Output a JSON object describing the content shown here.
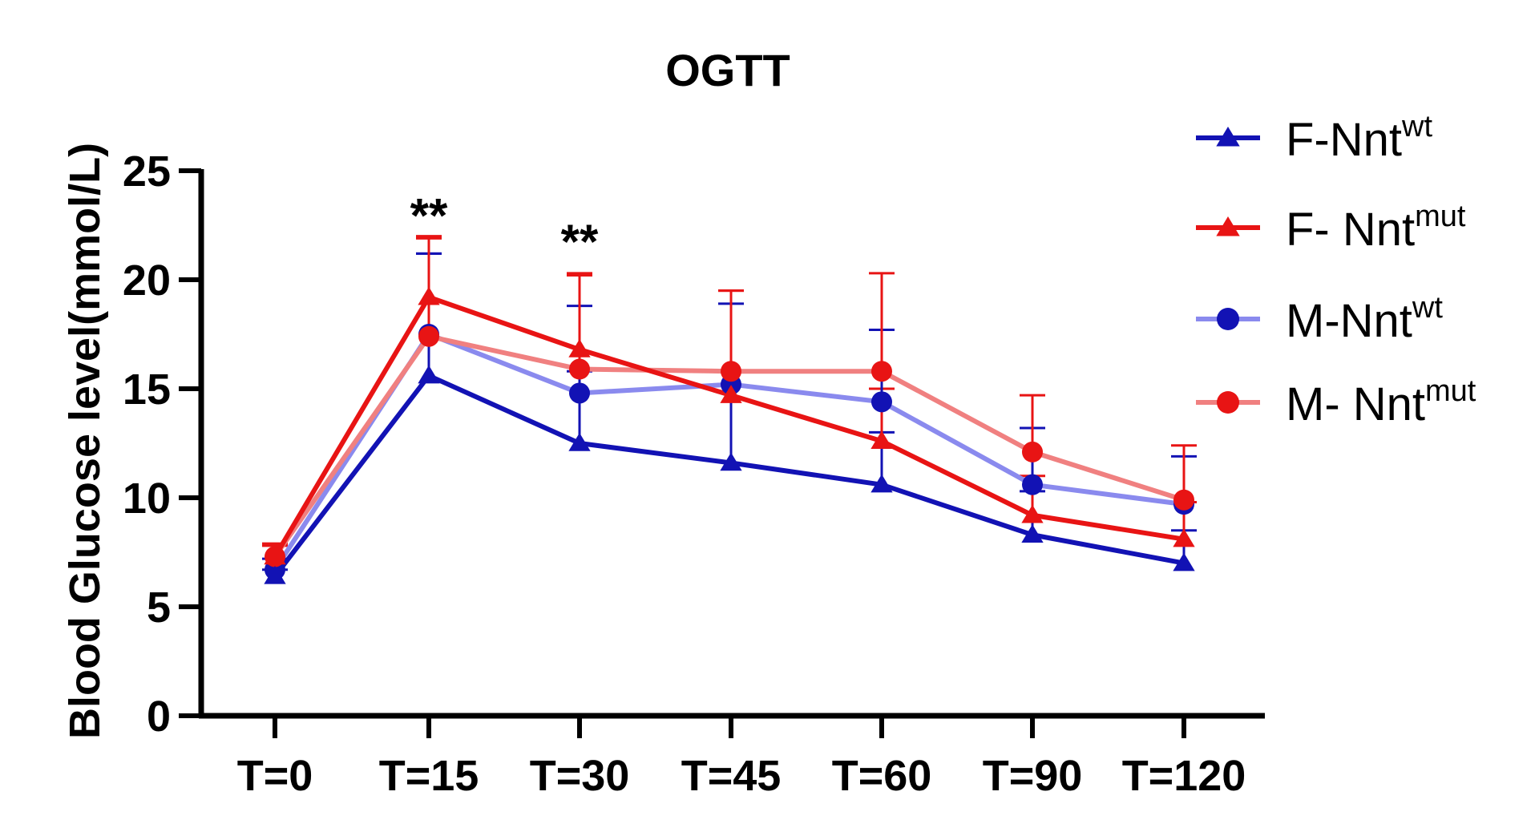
{
  "chart_data": {
    "type": "line",
    "title": "OGTT",
    "ylabel": "Blood Glucose level(mmol/L)",
    "xlabel": "",
    "categories": [
      "T=0",
      "T=15",
      "T=30",
      "T=45",
      "T=60",
      "T=90",
      "T=120"
    ],
    "ylim": [
      0,
      25
    ],
    "yticks": [
      0,
      5,
      10,
      15,
      20,
      25
    ],
    "grid": false,
    "legend_position": "top-right",
    "annotations": [
      {
        "category": "T=15",
        "text": "**",
        "y": 23.0
      },
      {
        "category": "T=30",
        "text": "**",
        "y": 21.8
      }
    ],
    "series": [
      {
        "name": "F-Nnt",
        "name_sup": "wt",
        "color": "#1212b4",
        "marker": "triangle",
        "values": [
          6.4,
          15.6,
          12.5,
          11.6,
          10.6,
          8.3,
          7.0
        ],
        "errors": [
          0.3,
          5.6,
          3.3,
          4.2,
          2.4,
          2.0,
          1.5
        ]
      },
      {
        "name": "F- Nnt",
        "name_sup": "mut",
        "color": "#e81414",
        "marker": "triangle",
        "values": [
          7.3,
          19.2,
          16.8,
          14.7,
          12.6,
          9.2,
          8.1
        ],
        "errors": [
          0.5,
          2.7,
          3.5,
          4.8,
          2.4,
          1.8,
          1.7
        ]
      },
      {
        "name": "M-Nnt",
        "name_sup": "wt",
        "color": "#8a8aee",
        "marker_color": "#1212b4",
        "marker": "circle",
        "values": [
          6.7,
          17.5,
          14.8,
          15.2,
          14.4,
          10.6,
          9.7
        ],
        "errors": [
          0.5,
          3.7,
          4.0,
          3.7,
          3.3,
          2.6,
          2.2
        ]
      },
      {
        "name": "M- Nnt",
        "name_sup": "mut",
        "color": "#f08080",
        "marker_color": "#e81414",
        "marker": "circle",
        "values": [
          7.3,
          17.4,
          15.9,
          15.8,
          15.8,
          12.1,
          9.9
        ],
        "errors": [
          0.6,
          4.6,
          4.3,
          3.7,
          4.5,
          2.6,
          2.5
        ]
      }
    ]
  }
}
